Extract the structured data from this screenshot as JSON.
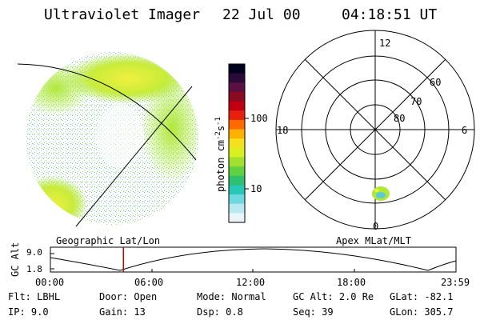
{
  "header": {
    "title": "Ultraviolet Imager",
    "date": "22 Jul 00",
    "time": "04:18:51 UT"
  },
  "colorbar": {
    "unit_prefix": "photon cm",
    "unit_exp1": "-2",
    "unit_mid": "s",
    "unit_exp2": "-1",
    "ticks": [
      "100",
      "10"
    ],
    "colors": [
      "#000020",
      "#2a0a3a",
      "#5a1040",
      "#8a0a20",
      "#c00010",
      "#e82010",
      "#ff6a00",
      "#ffb000",
      "#f5e020",
      "#d8f020",
      "#a0e030",
      "#60d040",
      "#30c070",
      "#28c8b8",
      "#70d8e0",
      "#b8e8f0",
      "#e8f4f8"
    ]
  },
  "left_panel": {
    "label": "Geographic Lat/Lon",
    "accent_colors": {
      "high": "#a8e030",
      "mid": "#f0f040",
      "low": "#ffffff"
    }
  },
  "polar": {
    "label": "Apex MLat/MLT",
    "mlt_labels": {
      "top": "12",
      "left": "18",
      "right": "6",
      "bottom": "0"
    },
    "lat_labels": [
      "60",
      "70",
      "80"
    ]
  },
  "altitude": {
    "axis_label": "GC Alt",
    "y_ticks": [
      "9.0",
      "1.8"
    ],
    "x_ticks": [
      "00:00",
      "06:00",
      "12:00",
      "18:00",
      "23:59"
    ],
    "current_time_fraction": 0.18,
    "marker_color": "#cc0000"
  },
  "info": {
    "flt_label": "Flt:",
    "flt_value": "LBHL",
    "ip_label": "IP:",
    "ip_value": "9.0",
    "door_label": "Door:",
    "door_value": "Open",
    "gain_label": "Gain:",
    "gain_value": "13",
    "mode_label": "Mode:",
    "mode_value": "Normal",
    "dsp_label": "Dsp:",
    "dsp_value": "0.8",
    "gcalt_label": "GC Alt:",
    "gcalt_value": "2.0 Re",
    "seq_label": "Seq:",
    "seq_value": "39",
    "glat_label": "GLat:",
    "glat_value": "-82.1",
    "glon_label": "GLon:",
    "glon_value": "305.7"
  }
}
